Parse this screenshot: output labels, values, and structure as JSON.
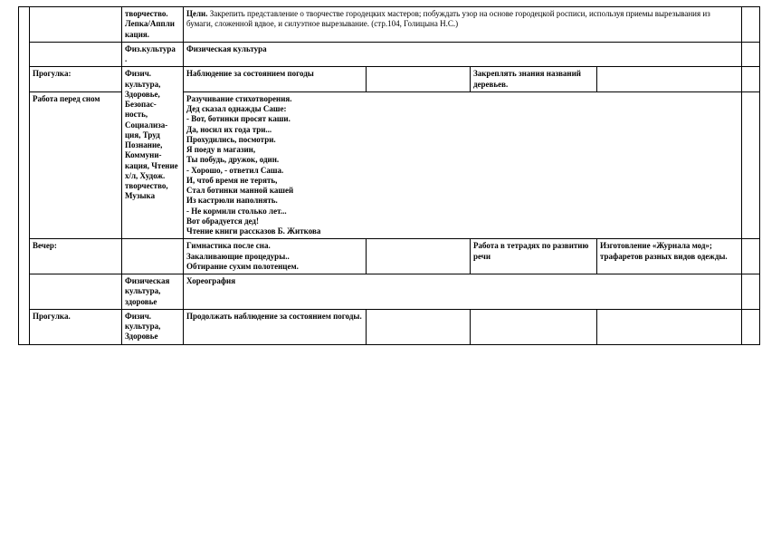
{
  "rows": {
    "r1": {
      "col2": "творчество.\nЛепка/Аппли\nкация.",
      "col3": "Цели. Закрепить  представление о творчестве городецких мастеров; побуждать узор на основе городецкой росписи, используя приемы вырезывания из бумаги, сложенной вдвое, и силуэтное вырезывание. (стр.104, Голицына Н.С.)"
    },
    "r2": {
      "col2": "Физ.культура\n.",
      "col3": "Физическая  культура"
    },
    "r3": {
      "col1": "Прогулка:",
      "col2": "Физич. культура, Здоровье, Безопас-\nность, Социализа-\nция, Труд Познание, Коммуни-\nкация, Чтение х/л, Худож. творчество, Музыка",
      "col3": "Наблюдение за состоянием погоды",
      "col5": "Закреплять знания названий деревьев."
    },
    "r4": {
      "col1": "Работа           перед сном",
      "col3": "Разучивание стихотворения.\nДед сказал однажды Саше:\n- Вот, ботинки просят каши.\nДа, носил их года три...\nПрохудились, посмотри.\nЯ поеду в магазин,\nТы побудь, дружок, один.\n- Хорошо, - ответил Саша.\nИ, чтоб время не терять,\nСтал ботинки манной кашей\nИз кастрюли наполнять.\n- Не кормили столько лет...\nВот обрадуется дед!\nЧтение книги рассказов  Б. Житкова"
    },
    "r5": {
      "col1": "Вечер:",
      "col3": "Гимнастика после сна.\nЗакаливающие процедуры..\nОбтирание сухим полотенцем.",
      "col5": "Работа в тетрадях по развитию речи",
      "col6": "     Изготовление         «Журнала мод»;       трафаретов       разных видов одежды."
    },
    "r6": {
      "col2": "Физическая культура, здоровье",
      "col3": "Хореография"
    },
    "r7": {
      "col1": "Прогулка.",
      "col2": "Физич. культура, Здоровье",
      "col3": "Продолжать наблюдение за состоянием погоды."
    }
  }
}
